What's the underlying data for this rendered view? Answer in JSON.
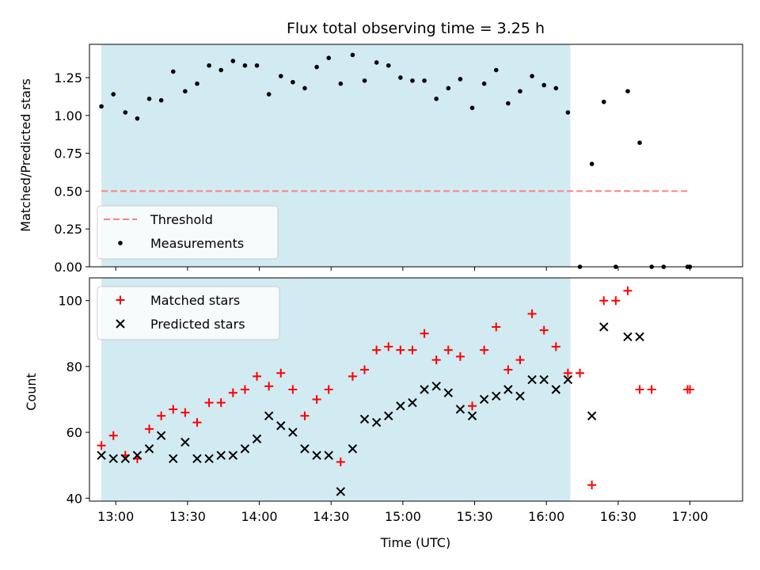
{
  "chart_data": {
    "type": "scatter",
    "title": "Flux total observing time = 3.25 h",
    "xlabel": "Time (UTC)",
    "x_ticks": [
      "13:00",
      "13:30",
      "14:00",
      "14:30",
      "15:00",
      "15:30",
      "16:00",
      "16:30",
      "17:00"
    ],
    "x_range": [
      "12:49",
      "17:22"
    ],
    "observing_window": [
      "12:54",
      "16:10"
    ],
    "colors": {
      "window": "#add8e6",
      "threshold": "#ff7f7f",
      "measurements": "#000000",
      "matched": "#ff0000",
      "predicted": "#000000"
    },
    "panels": [
      {
        "ylabel": "Matched/Predicted stars",
        "ylim": [
          0.0,
          1.47
        ],
        "y_ticks": [
          "0.00",
          "0.25",
          "0.50",
          "0.75",
          "1.00",
          "1.25"
        ],
        "legend_position": "lower-left",
        "threshold": {
          "name": "Threshold",
          "value": 0.5,
          "x": [
            "12:54",
            "17:00"
          ]
        },
        "series": [
          {
            "name": "Measurements",
            "marker": "dot",
            "x": [
              "12:54",
              "12:59",
              "13:04",
              "13:09",
              "13:14",
              "13:19",
              "13:24",
              "13:29",
              "13:34",
              "13:39",
              "13:44",
              "13:49",
              "13:54",
              "13:59",
              "14:04",
              "14:09",
              "14:14",
              "14:19",
              "14:24",
              "14:29",
              "14:34",
              "14:39",
              "14:44",
              "14:49",
              "14:54",
              "14:59",
              "15:04",
              "15:09",
              "15:14",
              "15:19",
              "15:24",
              "15:29",
              "15:34",
              "15:39",
              "15:44",
              "15:49",
              "15:54",
              "15:59",
              "16:04",
              "16:09",
              "16:14",
              "16:19",
              "16:24",
              "16:29",
              "16:34",
              "16:39",
              "16:44",
              "16:49",
              "16:59",
              "17:00"
            ],
            "y": [
              1.06,
              1.14,
              1.02,
              0.98,
              1.11,
              1.1,
              1.29,
              1.16,
              1.21,
              1.33,
              1.3,
              1.36,
              1.33,
              1.33,
              1.14,
              1.26,
              1.22,
              1.18,
              1.32,
              1.38,
              1.21,
              1.4,
              1.23,
              1.35,
              1.33,
              1.25,
              1.23,
              1.23,
              1.11,
              1.18,
              1.24,
              1.05,
              1.21,
              1.3,
              1.08,
              1.16,
              1.26,
              1.2,
              1.18,
              1.02,
              0.0,
              0.68,
              1.09,
              0.0,
              1.16,
              0.82,
              0.0,
              0.0,
              0.0,
              0.0
            ]
          }
        ]
      },
      {
        "ylabel": "Count",
        "ylim": [
          39.1,
          106.9
        ],
        "y_ticks": [
          "40",
          "60",
          "80",
          "100"
        ],
        "legend_position": "upper-left",
        "series": [
          {
            "name": "Matched stars",
            "marker": "plus",
            "x": [
              "12:54",
              "12:59",
              "13:04",
              "13:09",
              "13:14",
              "13:19",
              "13:24",
              "13:29",
              "13:34",
              "13:39",
              "13:44",
              "13:49",
              "13:54",
              "13:59",
              "14:04",
              "14:09",
              "14:14",
              "14:19",
              "14:24",
              "14:29",
              "14:34",
              "14:39",
              "14:44",
              "14:49",
              "14:54",
              "14:59",
              "15:04",
              "15:09",
              "15:14",
              "15:19",
              "15:24",
              "15:29",
              "15:34",
              "15:39",
              "15:44",
              "15:49",
              "15:54",
              "15:59",
              "16:04",
              "16:09",
              "16:14",
              "16:19",
              "16:24",
              "16:29",
              "16:34",
              "16:39",
              "16:44",
              "16:59",
              "17:00"
            ],
            "y": [
              56,
              59,
              53,
              52,
              61,
              65,
              67,
              66,
              63,
              69,
              69,
              72,
              73,
              77,
              74,
              78,
              73,
              65,
              70,
              73,
              51,
              77,
              79,
              85,
              86,
              85,
              85,
              90,
              82,
              85,
              83,
              68,
              85,
              92,
              79,
              82,
              96,
              91,
              86,
              78,
              78,
              44,
              100,
              100,
              103,
              73,
              73,
              73,
              73
            ]
          },
          {
            "name": "Predicted stars",
            "marker": "x",
            "x": [
              "12:54",
              "12:59",
              "13:04",
              "13:09",
              "13:14",
              "13:19",
              "13:24",
              "13:29",
              "13:34",
              "13:39",
              "13:44",
              "13:49",
              "13:54",
              "13:59",
              "14:04",
              "14:09",
              "14:14",
              "14:19",
              "14:24",
              "14:29",
              "14:34",
              "14:39",
              "14:44",
              "14:49",
              "14:54",
              "14:59",
              "15:04",
              "15:09",
              "15:14",
              "15:19",
              "15:24",
              "15:29",
              "15:34",
              "15:39",
              "15:44",
              "15:49",
              "15:54",
              "15:59",
              "16:04",
              "16:09",
              "16:19",
              "16:24",
              "16:34",
              "16:39"
            ],
            "y": [
              53,
              52,
              52,
              53,
              55,
              59,
              52,
              57,
              52,
              52,
              53,
              53,
              55,
              58,
              65,
              62,
              60,
              55,
              53,
              53,
              42,
              55,
              64,
              63,
              65,
              68,
              69,
              73,
              74,
              72,
              67,
              65,
              70,
              71,
              73,
              71,
              76,
              76,
              73,
              76,
              65,
              92,
              89,
              89
            ]
          }
        ]
      }
    ]
  }
}
